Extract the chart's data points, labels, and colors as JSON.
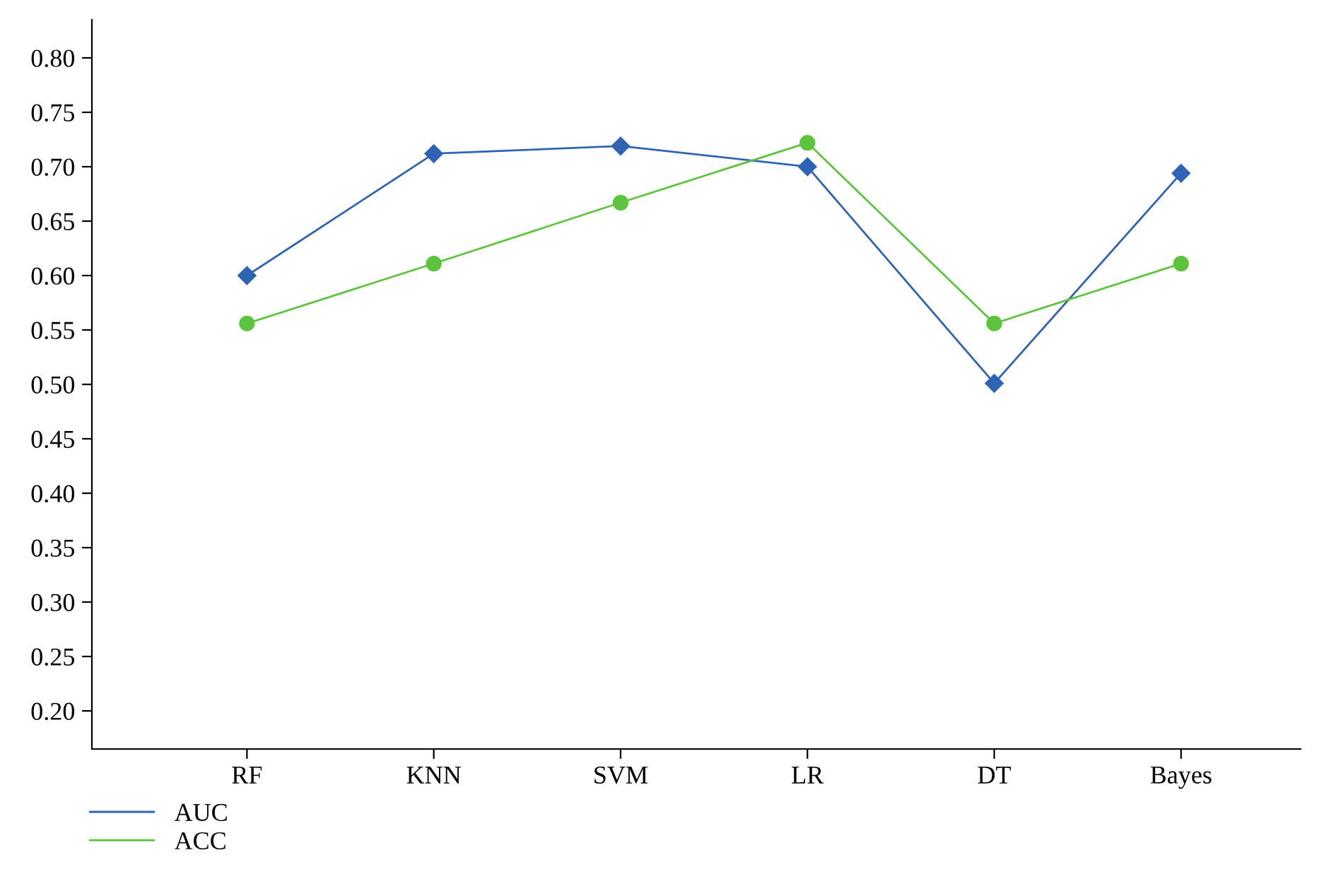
{
  "chart_data": {
    "type": "line",
    "categories": [
      "RF",
      "KNN",
      "SVM",
      "LR",
      "DT",
      "Bayes"
    ],
    "series": [
      {
        "name": "AUC",
        "color": "#2f64b4",
        "marker": "diamond",
        "values": [
          0.6,
          0.712,
          0.719,
          0.7,
          0.501,
          0.694
        ]
      },
      {
        "name": "ACC",
        "color": "#5cc43c",
        "marker": "circle",
        "values": [
          0.556,
          0.611,
          0.667,
          0.722,
          0.556,
          0.611
        ]
      }
    ],
    "ylim": [
      0.165,
      0.835
    ],
    "yticks": [
      {
        "value": 0.2,
        "label": "0.20"
      },
      {
        "value": 0.25,
        "label": "0.25"
      },
      {
        "value": 0.3,
        "label": "0.30"
      },
      {
        "value": 0.35,
        "label": "0.35"
      },
      {
        "value": 0.4,
        "label": "0.40"
      },
      {
        "value": 0.45,
        "label": "0.45"
      },
      {
        "value": 0.5,
        "label": "0.50"
      },
      {
        "value": 0.55,
        "label": "0.55"
      },
      {
        "value": 0.6,
        "label": "0.60"
      },
      {
        "value": 0.65,
        "label": "0.65"
      },
      {
        "value": 0.7,
        "label": "0.70"
      },
      {
        "value": 0.75,
        "label": "0.75"
      },
      {
        "value": 0.8,
        "label": "0.80"
      }
    ],
    "grid": false,
    "legend": "bottom left",
    "line_style": "solid"
  }
}
